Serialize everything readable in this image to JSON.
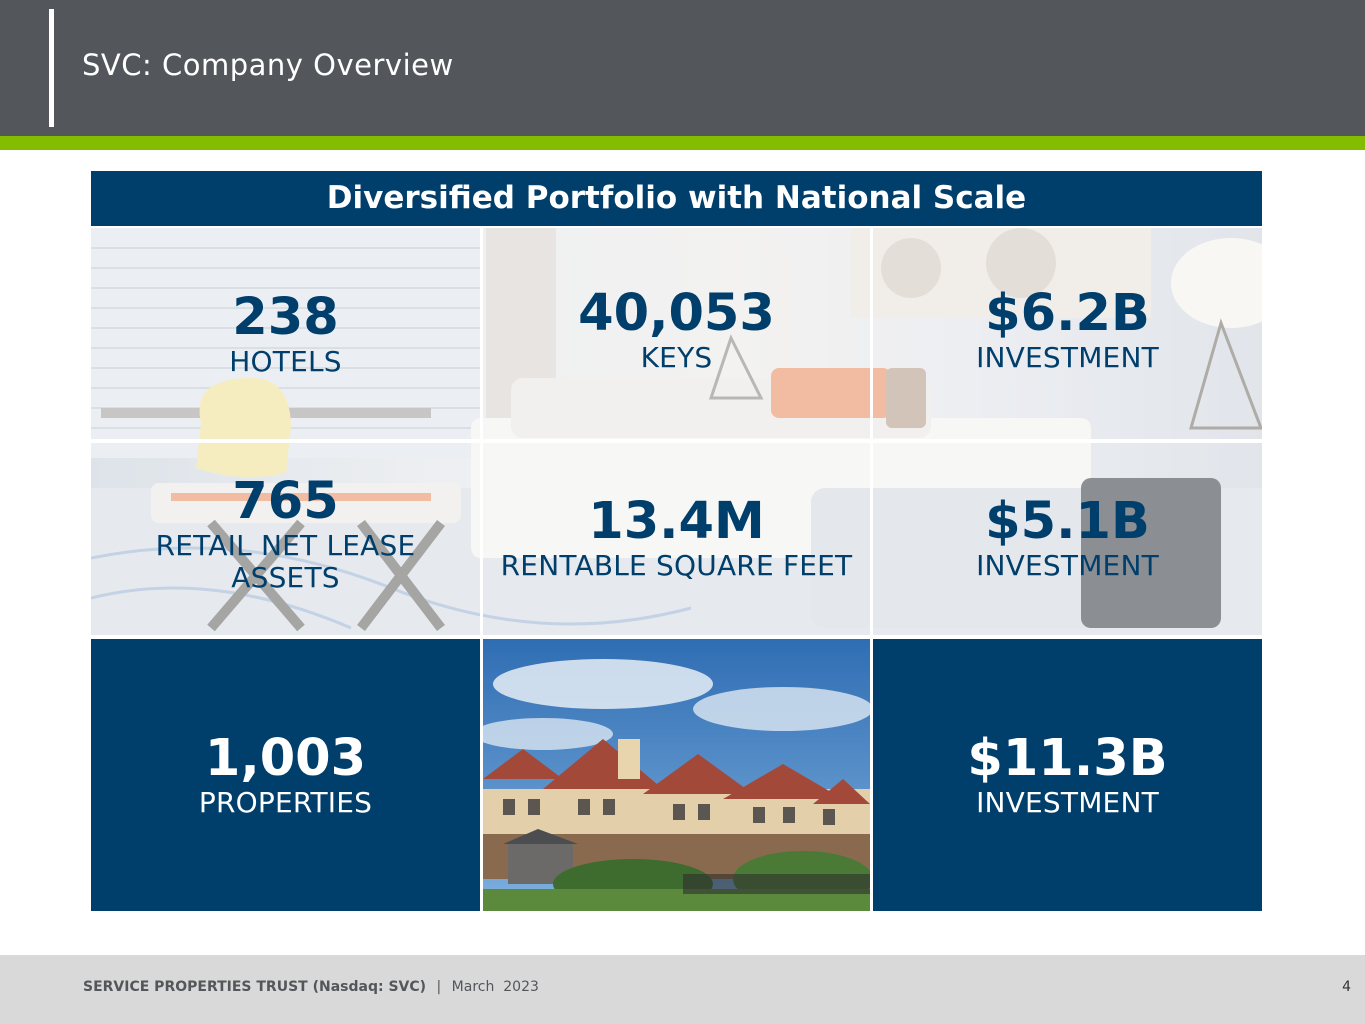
{
  "header": {
    "title": "SVC: Company Overview"
  },
  "banner": {
    "title": "Diversified Portfolio with National Scale"
  },
  "stats": {
    "hotels": {
      "value": "238",
      "label": "HOTELS"
    },
    "keys": {
      "value": "40,053",
      "label": "KEYS"
    },
    "hotel_investment": {
      "value": "$6.2B",
      "label": "INVESTMENT"
    },
    "retail": {
      "value": "765",
      "label_line1": "RETAIL NET LEASE",
      "label_line2": "ASSETS"
    },
    "square_feet": {
      "value": "13.4M",
      "label": "RENTABLE SQUARE FEET"
    },
    "retail_investment": {
      "value": "$5.1B",
      "label": "INVESTMENT"
    },
    "properties": {
      "value": "1,003",
      "label": "PROPERTIES"
    },
    "total_investment": {
      "value": "$11.3B",
      "label": "INVESTMENT"
    }
  },
  "footer": {
    "company": "SERVICE PROPERTIES TRUST (Nasdaq: SVC)",
    "separator": "|",
    "date": "March  2023",
    "page_number": "4"
  },
  "colors": {
    "navy": "#003e6b",
    "green": "#84bd00",
    "header_gray": "#53565a"
  },
  "icons": {
    "background_photo": "hotel-room-photo",
    "building_photo": "hotel-building-photo"
  }
}
